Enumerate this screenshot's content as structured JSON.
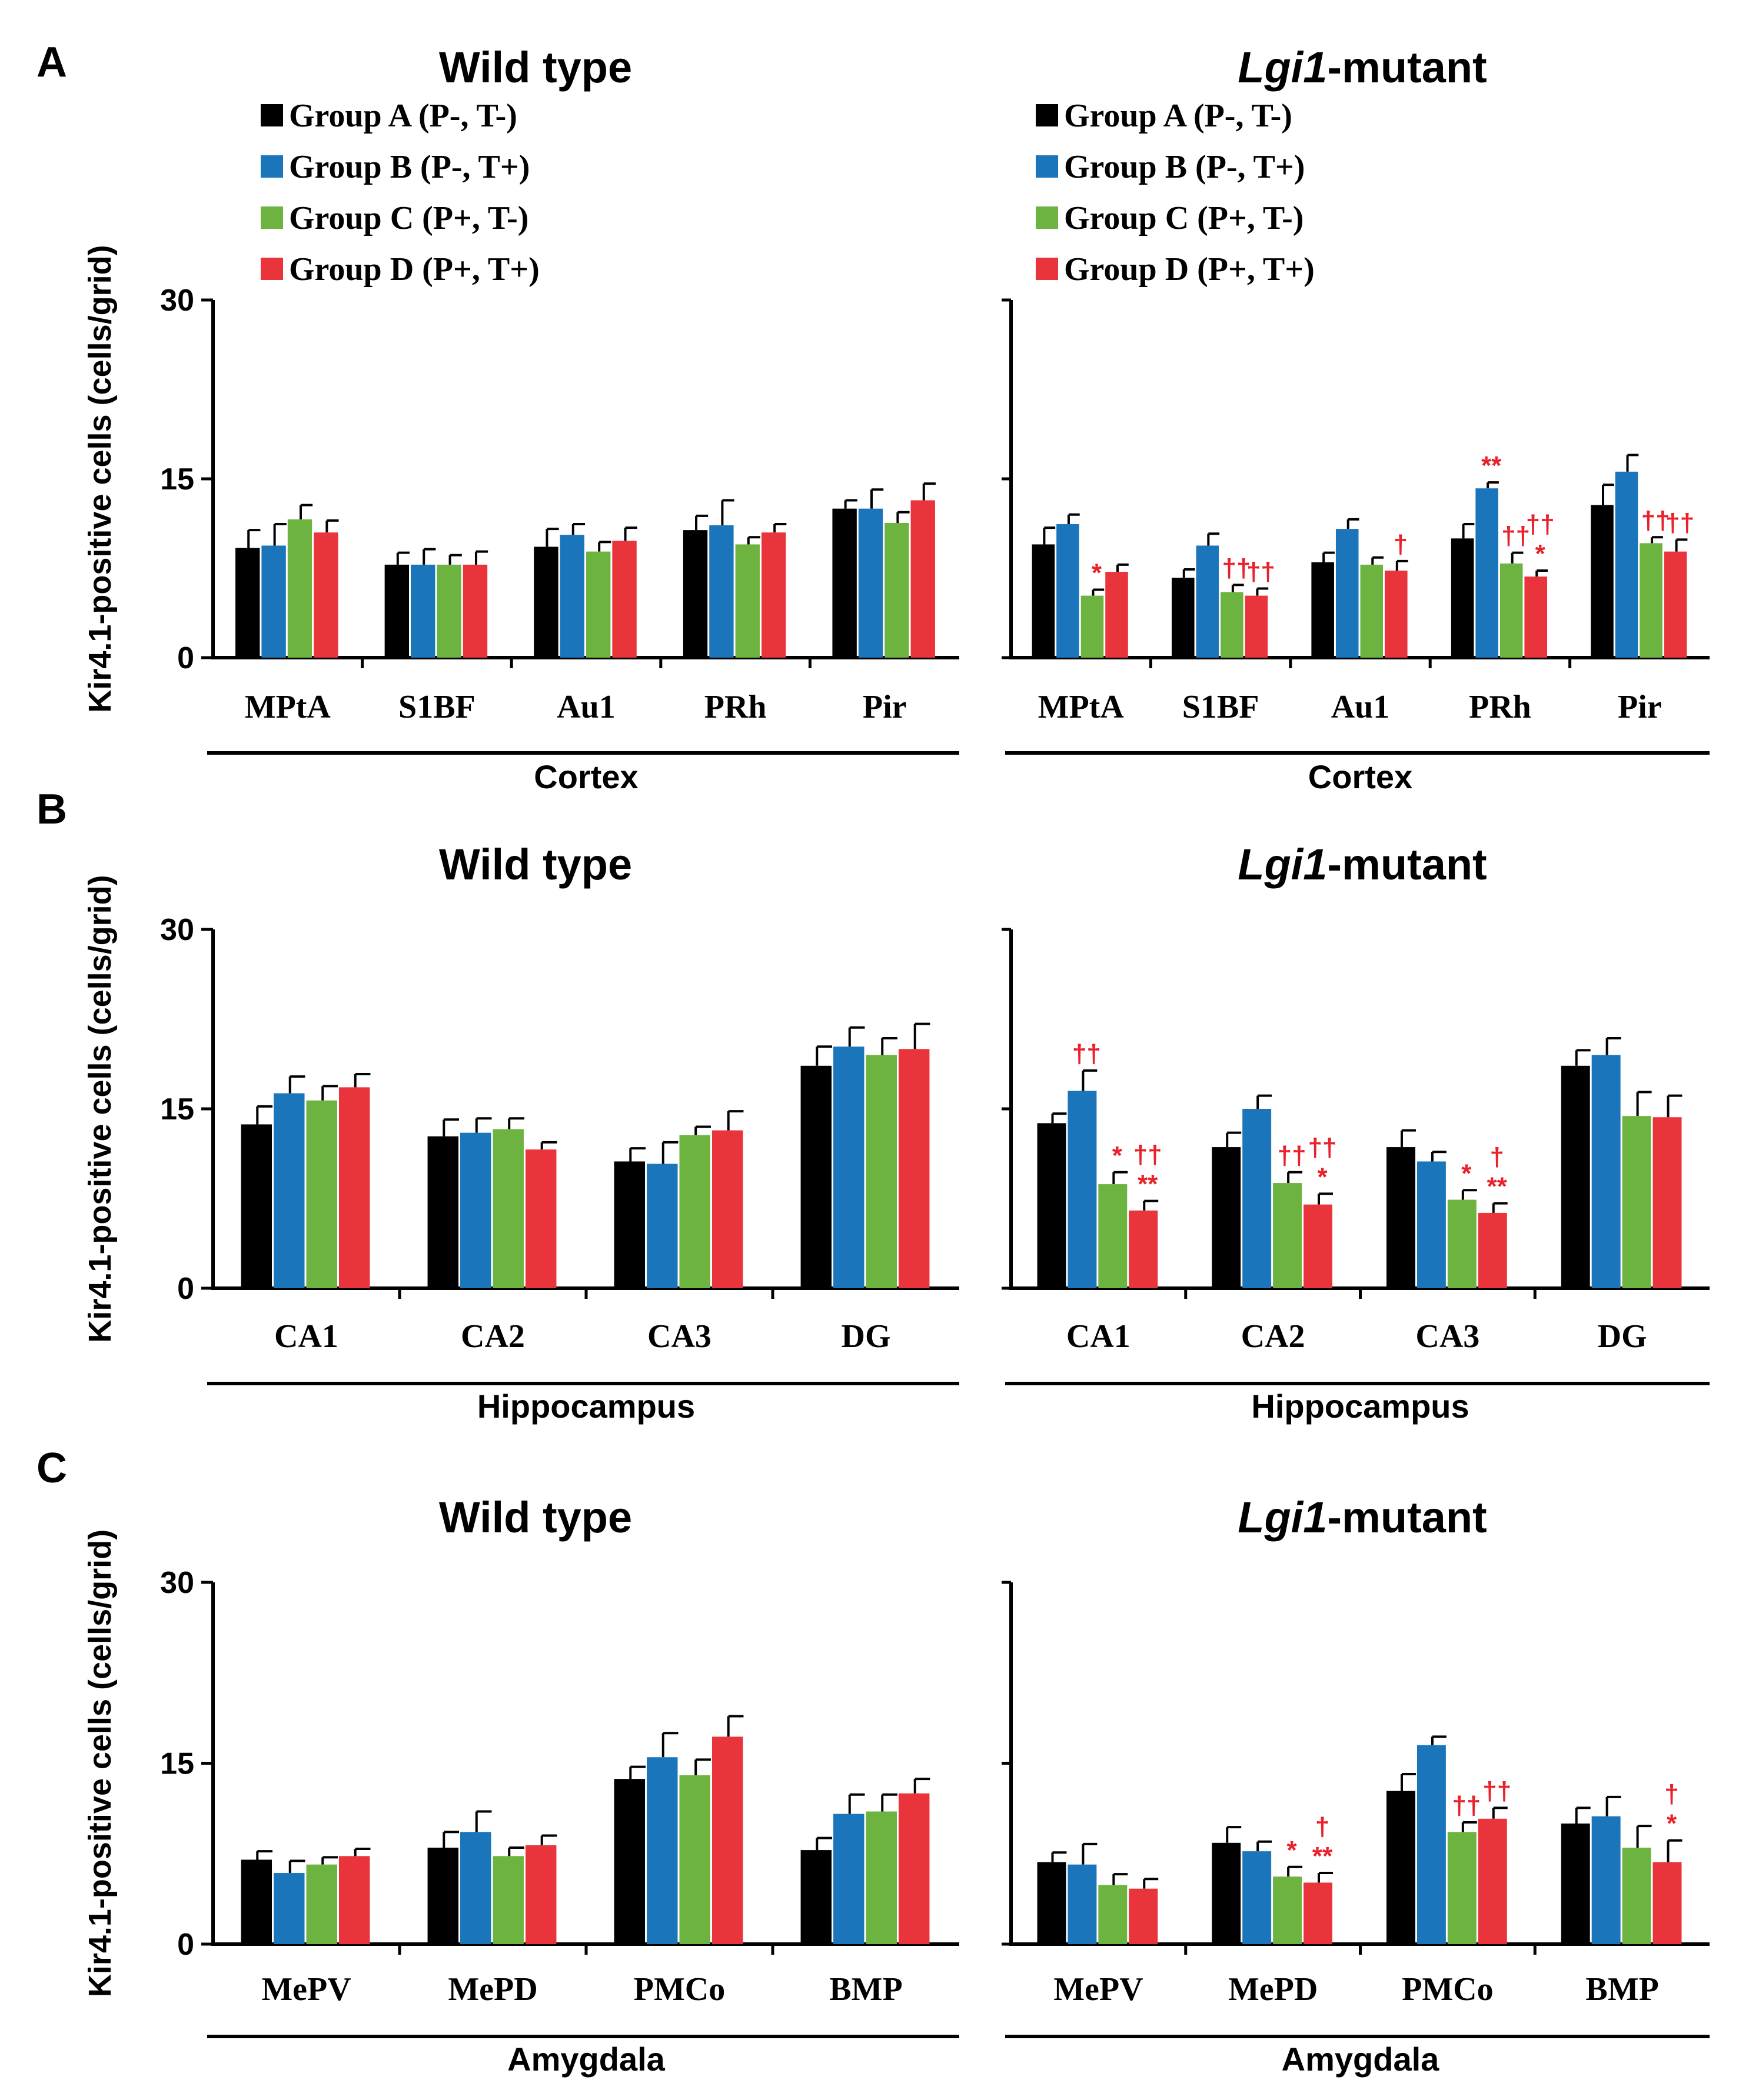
{
  "chart_data": {
    "type": "bar",
    "colors": {
      "Group A (P-, T-)": "#000000",
      "Group B (P-, T+)": "#1b75bb",
      "Group C (P+, T-)": "#6db33f",
      "Group D (P+, T+)": "#e8343a",
      "significance": "#e8212a"
    },
    "legend": [
      "Group A (P-, T-)",
      "Group B (P-, T+)",
      "Group C (P+, T-)",
      "Group D (P+, T+)"
    ],
    "ylabel": "Kir4.1-positive cells (cells/grid)",
    "ylim": [
      0,
      30
    ],
    "yticks": [
      "0",
      "15",
      "30"
    ],
    "panels": [
      {
        "letter": "A",
        "region": "Cortex",
        "categories": [
          "MPtA",
          "S1BF",
          "Au1",
          "PRh",
          "Pir"
        ],
        "charts": [
          {
            "title": "Wild type",
            "values": [
              [
                9.2,
                9.4,
                11.6,
                10.5
              ],
              [
                7.8,
                7.8,
                7.8,
                7.8
              ],
              [
                9.3,
                10.3,
                8.9,
                9.8
              ],
              [
                10.7,
                11.1,
                9.5,
                10.5
              ],
              [
                12.5,
                12.5,
                11.3,
                13.2
              ]
            ],
            "errors": [
              [
                1.5,
                1.8,
                1.2,
                1.0
              ],
              [
                1.0,
                1.3,
                0.8,
                1.1
              ],
              [
                1.5,
                0.9,
                0.8,
                1.1
              ],
              [
                1.2,
                2.1,
                0.6,
                0.7
              ],
              [
                0.7,
                1.6,
                0.9,
                1.4
              ]
            ],
            "annotations": []
          },
          {
            "title_italic": "Lgi1",
            "title_rest": "-mutant",
            "values": [
              [
                9.5,
                11.2,
                5.2,
                7.2
              ],
              [
                6.7,
                9.4,
                5.5,
                5.2
              ],
              [
                8.0,
                10.8,
                7.8,
                7.3
              ],
              [
                10.0,
                14.2,
                7.9,
                6.8
              ],
              [
                12.8,
                15.6,
                9.6,
                8.9
              ]
            ],
            "errors": [
              [
                1.4,
                0.8,
                0.5,
                0.6
              ],
              [
                0.7,
                1.0,
                0.6,
                0.6
              ],
              [
                0.8,
                0.8,
                0.6,
                0.8
              ],
              [
                1.2,
                0.5,
                0.9,
                0.5
              ],
              [
                1.7,
                1.4,
                0.5,
                1.0
              ]
            ],
            "annotations": [
              {
                "cat": 0,
                "bar": 2,
                "lines": [
                  "*"
                ]
              },
              {
                "cat": 1,
                "bar": 2,
                "lines": [
                  "††"
                ]
              },
              {
                "cat": 1,
                "bar": 3,
                "lines": [
                  "††"
                ]
              },
              {
                "cat": 2,
                "bar": 3,
                "lines": [
                  "†"
                ]
              },
              {
                "cat": 3,
                "bar": 1,
                "lines": [
                  "**"
                ]
              },
              {
                "cat": 3,
                "bar": 2,
                "lines": [
                  "††"
                ]
              },
              {
                "cat": 3,
                "bar": 3,
                "lines": [
                  "††",
                  "*"
                ]
              },
              {
                "cat": 4,
                "bar": 2,
                "lines": [
                  "††"
                ]
              },
              {
                "cat": 4,
                "bar": 3,
                "lines": [
                  "††"
                ]
              }
            ]
          }
        ]
      },
      {
        "letter": "B",
        "region": "Hippocampus",
        "categories": [
          "CA1",
          "CA2",
          "CA3",
          "DG"
        ],
        "charts": [
          {
            "title": "Wild type",
            "values": [
              [
                13.7,
                16.3,
                15.7,
                16.8
              ],
              [
                12.7,
                13.0,
                13.3,
                11.6
              ],
              [
                10.6,
                10.4,
                12.8,
                13.2
              ],
              [
                18.6,
                20.2,
                19.5,
                20.0
              ]
            ],
            "errors": [
              [
                1.5,
                1.4,
                1.2,
                1.1
              ],
              [
                1.4,
                1.2,
                0.9,
                0.6
              ],
              [
                1.1,
                1.8,
                0.7,
                1.6
              ],
              [
                1.6,
                1.6,
                1.4,
                2.1
              ]
            ],
            "annotations": []
          },
          {
            "title_italic": "Lgi1",
            "title_rest": "-mutant",
            "values": [
              [
                13.8,
                16.5,
                8.7,
                6.5
              ],
              [
                11.8,
                15.0,
                8.8,
                7.0
              ],
              [
                11.8,
                10.6,
                7.4,
                6.3
              ],
              [
                18.6,
                19.5,
                14.4,
                14.3
              ]
            ],
            "errors": [
              [
                0.8,
                1.7,
                1.0,
                0.8
              ],
              [
                1.2,
                1.1,
                0.9,
                0.9
              ],
              [
                1.4,
                0.8,
                0.8,
                0.8
              ],
              [
                1.3,
                1.4,
                2.0,
                1.8
              ]
            ],
            "annotations": [
              {
                "cat": 0,
                "bar": 1,
                "lines": [
                  "††"
                ]
              },
              {
                "cat": 0,
                "bar": 2,
                "lines": [
                  "*"
                ]
              },
              {
                "cat": 0,
                "bar": 3,
                "lines": [
                  "††",
                  "**"
                ]
              },
              {
                "cat": 1,
                "bar": 2,
                "lines": [
                  "††"
                ]
              },
              {
                "cat": 1,
                "bar": 3,
                "lines": [
                  "††",
                  "*"
                ]
              },
              {
                "cat": 2,
                "bar": 2,
                "lines": [
                  "*"
                ]
              },
              {
                "cat": 2,
                "bar": 3,
                "lines": [
                  "†",
                  "**"
                ]
              }
            ]
          }
        ]
      },
      {
        "letter": "C",
        "region": "Amygdala",
        "categories": [
          "MePV",
          "MePD",
          "PMCo",
          "BMP"
        ],
        "charts": [
          {
            "title": "Wild type",
            "values": [
              [
                7.0,
                5.9,
                6.6,
                7.3
              ],
              [
                8.0,
                9.3,
                7.3,
                8.2
              ],
              [
                13.7,
                15.5,
                14.0,
                17.2
              ],
              [
                7.8,
                10.8,
                11.0,
                12.5
              ]
            ],
            "errors": [
              [
                0.7,
                1.0,
                0.6,
                0.6
              ],
              [
                1.3,
                1.7,
                0.7,
                0.8
              ],
              [
                1.0,
                2.0,
                1.3,
                1.7
              ],
              [
                1.0,
                1.6,
                1.4,
                1.2
              ]
            ],
            "annotations": []
          },
          {
            "title_italic": "Lgi1",
            "title_rest": "-mutant",
            "values": [
              [
                6.8,
                6.6,
                4.9,
                4.6
              ],
              [
                8.4,
                7.7,
                5.6,
                5.1
              ],
              [
                12.7,
                16.5,
                9.3,
                10.4
              ],
              [
                10.0,
                10.6,
                8.0,
                6.8
              ]
            ],
            "errors": [
              [
                0.8,
                1.7,
                0.9,
                0.8
              ],
              [
                1.3,
                0.8,
                0.8,
                0.8
              ],
              [
                1.4,
                0.7,
                0.8,
                0.9
              ],
              [
                1.3,
                1.6,
                1.8,
                1.8
              ]
            ],
            "annotations": [
              {
                "cat": 1,
                "bar": 2,
                "lines": [
                  "*"
                ]
              },
              {
                "cat": 1,
                "bar": 3,
                "lines": [
                  "†",
                  "**"
                ]
              },
              {
                "cat": 2,
                "bar": 2,
                "lines": [
                  "††"
                ]
              },
              {
                "cat": 2,
                "bar": 3,
                "lines": [
                  "††"
                ]
              },
              {
                "cat": 3,
                "bar": 3,
                "lines": [
                  "†",
                  "*"
                ]
              }
            ]
          }
        ]
      }
    ]
  }
}
